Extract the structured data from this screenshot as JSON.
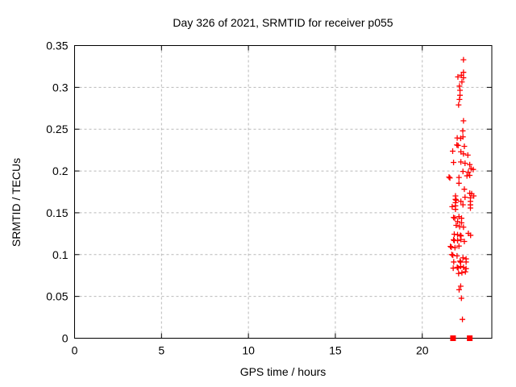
{
  "chart_data": {
    "type": "scatter",
    "title": "Day 326 of 2021, SRMTID for receiver p055",
    "xlabel": "GPS time / hours",
    "ylabel": "SRMTID / TECUs",
    "xlim": [
      0,
      24
    ],
    "ylim": [
      0,
      0.35
    ],
    "grid": true,
    "legend": "none",
    "x_ticks": [
      {
        "v": 0,
        "label": "0"
      },
      {
        "v": 5,
        "label": "5"
      },
      {
        "v": 10,
        "label": "10"
      },
      {
        "v": 15,
        "label": "15"
      },
      {
        "v": 20,
        "label": "20"
      }
    ],
    "y_ticks": [
      {
        "v": 0,
        "label": "0"
      },
      {
        "v": 0.05,
        "label": "0.05"
      },
      {
        "v": 0.1,
        "label": "0.1"
      },
      {
        "v": 0.15,
        "label": "0.15"
      },
      {
        "v": 0.2,
        "label": "0.2"
      },
      {
        "v": 0.25,
        "label": "0.25"
      },
      {
        "v": 0.3,
        "label": "0.3"
      },
      {
        "v": 0.35,
        "label": "0.35"
      }
    ],
    "series": [
      {
        "name": "SRMTID points",
        "marker": "plus",
        "color": "#ff0000",
        "points": [
          [
            22.37,
            0.333
          ],
          [
            22.37,
            0.318
          ],
          [
            22.05,
            0.3125
          ],
          [
            22.25,
            0.3145
          ],
          [
            22.37,
            0.3115
          ],
          [
            22.28,
            0.3065
          ],
          [
            22.14,
            0.3015
          ],
          [
            22.17,
            0.2965
          ],
          [
            22.17,
            0.2905
          ],
          [
            22.14,
            0.2855
          ],
          [
            22.09,
            0.279
          ],
          [
            22.37,
            0.26
          ],
          [
            22.33,
            0.248
          ],
          [
            22.01,
            0.2395
          ],
          [
            22.21,
            0.239
          ],
          [
            22.34,
            0.2408
          ],
          [
            21.99,
            0.2312
          ],
          [
            22.06,
            0.2305
          ],
          [
            22.42,
            0.2295
          ],
          [
            21.75,
            0.2237
          ],
          [
            22.22,
            0.223
          ],
          [
            22.37,
            0.2205
          ],
          [
            22.62,
            0.219
          ],
          [
            21.8,
            0.2102
          ],
          [
            22.22,
            0.2108
          ],
          [
            22.46,
            0.2092
          ],
          [
            22.73,
            0.2076
          ],
          [
            22.81,
            0.2028
          ],
          [
            22.93,
            0.2018
          ],
          [
            22.34,
            0.1995
          ],
          [
            22.65,
            0.1985
          ],
          [
            21.54,
            0.1927
          ],
          [
            21.59,
            0.1916
          ],
          [
            22.11,
            0.1922
          ],
          [
            22.57,
            0.1942
          ],
          [
            22.73,
            0.1948
          ],
          [
            22.11,
            0.1853
          ],
          [
            22.42,
            0.1782
          ],
          [
            21.91,
            0.1702
          ],
          [
            21.91,
            0.166
          ],
          [
            21.95,
            0.1652
          ],
          [
            21.91,
            0.1621
          ],
          [
            21.91,
            0.1583
          ],
          [
            21.91,
            0.1541
          ],
          [
            21.72,
            0.1573
          ],
          [
            22.22,
            0.1637
          ],
          [
            22.34,
            0.1596
          ],
          [
            22.46,
            0.1686
          ],
          [
            22.73,
            0.1734
          ],
          [
            22.84,
            0.1728
          ],
          [
            22.77,
            0.1679
          ],
          [
            22.77,
            0.1637
          ],
          [
            22.77,
            0.1595
          ],
          [
            22.77,
            0.1557
          ],
          [
            22.96,
            0.1702
          ],
          [
            21.8,
            0.1444
          ],
          [
            21.87,
            0.1437
          ],
          [
            22.11,
            0.1454
          ],
          [
            22.26,
            0.1435
          ],
          [
            22.03,
            0.1396
          ],
          [
            22.26,
            0.138
          ],
          [
            21.95,
            0.135
          ],
          [
            22.15,
            0.1334
          ],
          [
            22.37,
            0.1328
          ],
          [
            21.84,
            0.1244
          ],
          [
            22.03,
            0.1238
          ],
          [
            22.19,
            0.1231
          ],
          [
            22.23,
            0.1224
          ],
          [
            22.65,
            0.1254
          ],
          [
            22.78,
            0.1231
          ],
          [
            21.8,
            0.1177
          ],
          [
            21.84,
            0.1168
          ],
          [
            22.03,
            0.1167
          ],
          [
            22.22,
            0.118
          ],
          [
            22.42,
            0.1157
          ],
          [
            21.62,
            0.1098
          ],
          [
            21.67,
            0.1088
          ],
          [
            21.88,
            0.1083
          ],
          [
            22.11,
            0.1102
          ],
          [
            21.7,
            0.1
          ],
          [
            21.76,
            0.0992
          ],
          [
            22.0,
            0.0985
          ],
          [
            22.34,
            0.0962
          ],
          [
            21.81,
            0.0912
          ],
          [
            22.17,
            0.0922
          ],
          [
            22.21,
            0.091
          ],
          [
            22.52,
            0.0949
          ],
          [
            22.52,
            0.0912
          ],
          [
            21.78,
            0.0838
          ],
          [
            22.01,
            0.0848
          ],
          [
            22.06,
            0.084
          ],
          [
            22.21,
            0.0858
          ],
          [
            22.37,
            0.0848
          ],
          [
            22.52,
            0.0832
          ],
          [
            22.09,
            0.0774
          ],
          [
            22.28,
            0.0784
          ],
          [
            22.48,
            0.0794
          ],
          [
            22.21,
            0.0622
          ],
          [
            22.12,
            0.058
          ],
          [
            22.25,
            0.0478
          ],
          [
            22.31,
            0.0225
          ]
        ]
      },
      {
        "name": "zero markers",
        "marker": "square",
        "color": "#ff0000",
        "points": [
          [
            21.77,
            0
          ],
          [
            22.73,
            0
          ]
        ]
      }
    ]
  },
  "colors": {
    "background": "#ffffff",
    "border": "#000000",
    "grid": "#b9b9b9",
    "marker": "#ff0000",
    "text": "#000000"
  }
}
